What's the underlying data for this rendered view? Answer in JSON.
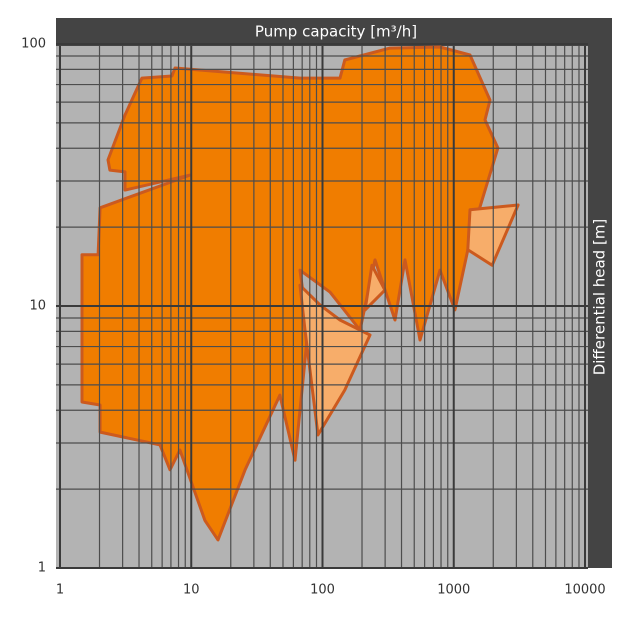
{
  "chart_data": {
    "type": "region",
    "title": "Pump capacity [m³/h]",
    "y_label": "Differential head [m]",
    "log_x": true,
    "log_y": true,
    "grid": true,
    "minor_grid": true,
    "xlim": [
      1,
      10000
    ],
    "xticks": [
      1,
      10,
      100,
      1000,
      10000
    ],
    "ylim": [
      1,
      100
    ],
    "yticks": [
      1,
      10,
      100
    ],
    "series": [
      {
        "color": "#f07d00",
        "x": [
          2.32,
          3.13,
          4.21,
          7.13,
          7.52,
          67.4,
          136,
          148,
          327,
          785,
          1330,
          1890,
          1730,
          2170,
          1330,
          1020,
          785,
          553,
          425,
          357,
          251,
          193,
          114,
          67.4,
          77.6,
          61.7,
          47.4,
          25.7,
          16.0,
          12.7,
          8.2,
          6.89,
          5.78,
          2.02,
          2.02,
          1.47,
          1.47,
          1.95,
          2.02,
          9.78,
          3.13,
          3.13,
          2.4
        ],
        "values": [
          36.1,
          53.6,
          74.1,
          75.5,
          81.0,
          74.1,
          74.1,
          86.9,
          96.5,
          97.4,
          90.8,
          61.1,
          51.3,
          40.1,
          17.9,
          9.66,
          13.7,
          7.42,
          15.0,
          8.84,
          15.0,
          8.1,
          11.3,
          13.7,
          8.1,
          2.58,
          4.57,
          2.37,
          1.28,
          1.52,
          2.82,
          2.37,
          2.95,
          3.3,
          4.19,
          4.3,
          15.7,
          15.7,
          23.7,
          31.6,
          27.7,
          32.5,
          33.0
        ]
      },
      {
        "color": "#f7ad6a",
        "x": [
          67.4,
          95.7,
          136,
          230,
          148,
          92.4,
          73.6
        ],
        "values": [
          12.0,
          10.1,
          8.84,
          7.75,
          4.78,
          3.22,
          8.1
        ]
      },
      {
        "color": "#f7ad6a",
        "x": [
          1330,
          3090,
          1960,
          1280
        ],
        "values": [
          23.3,
          24.3,
          14.3,
          16.4
        ]
      },
      {
        "color": "#f7ad6a",
        "x": [
          238,
          299,
          211
        ],
        "values": [
          14.3,
          11.5,
          9.66
        ]
      }
    ]
  }
}
